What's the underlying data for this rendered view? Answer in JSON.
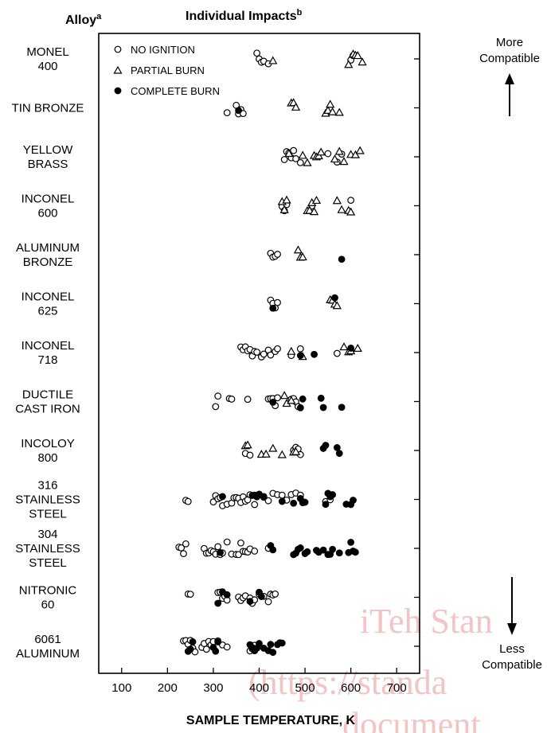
{
  "header": {
    "alloy_heading": "Alloy",
    "alloy_sup": "a",
    "impacts_heading": "Individual Impacts",
    "impacts_sup": "b"
  },
  "side": {
    "top_line1": "More",
    "top_line2": "Compatible",
    "bottom_line1": "Less",
    "bottom_line2": "Compatible"
  },
  "watermark": {
    "line1": "iTeh Stan",
    "line2": "(https://standa",
    "line3": "document",
    "color": "#f2c4c4"
  },
  "legend": [
    {
      "marker": "circle-open",
      "label": "NO IGNITION"
    },
    {
      "marker": "triangle-open",
      "label": "PARTIAL BURN"
    },
    {
      "marker": "circle-filled",
      "label": "COMPLETE BURN"
    }
  ],
  "chart_data": {
    "type": "scatter",
    "title": "Individual Impacts",
    "xlabel": "SAMPLE TEMPERATURE, K",
    "ylabel": "Alloy",
    "xlim": [
      50,
      750
    ],
    "xticks": [
      100,
      200,
      300,
      400,
      500,
      600,
      700
    ],
    "alloys": [
      {
        "label": [
          "MONEL",
          "400"
        ],
        "no_ignition": [
          395,
          400,
          405,
          410,
          420,
          600,
          605
        ],
        "partial_burn": [
          430,
          595,
          605,
          610,
          615,
          625
        ],
        "complete_burn": []
      },
      {
        "label": [
          "TIN BRONZE"
        ],
        "no_ignition": [
          330,
          350,
          355,
          360,
          365
        ],
        "partial_burn": [
          470,
          475,
          480,
          545,
          550,
          555,
          560,
          575
        ],
        "complete_burn": [
          355
        ]
      },
      {
        "label": [
          "YELLOW",
          "BRASS"
        ],
        "no_ignition": [
          455,
          460,
          465,
          470,
          475,
          480,
          490,
          550,
          570,
          580
        ],
        "partial_burn": [
          465,
          495,
          505,
          520,
          525,
          530,
          535,
          565,
          575,
          585,
          600,
          610,
          620
        ],
        "complete_burn": []
      },
      {
        "label": [
          "INCONEL",
          "600"
        ],
        "no_ignition": [
          450,
          455,
          460,
          515,
          600
        ],
        "partial_burn": [
          450,
          455,
          460,
          505,
          510,
          515,
          520,
          525,
          570,
          580,
          595,
          600
        ],
        "complete_burn": []
      },
      {
        "label": [
          "ALUMINUM",
          "BRONZE"
        ],
        "no_ignition": [
          425,
          430,
          435,
          440
        ],
        "partial_burn": [
          485,
          490,
          495
        ],
        "complete_burn": [
          580
        ]
      },
      {
        "label": [
          "INCONEL",
          "625"
        ],
        "no_ignition": [
          425,
          430,
          435,
          440
        ],
        "partial_burn": [
          555,
          560,
          565,
          570
        ],
        "complete_burn": [
          430,
          565
        ]
      },
      {
        "label": [
          "INCONEL",
          "718"
        ],
        "no_ignition": [
          360,
          365,
          370,
          375,
          380,
          385,
          390,
          395,
          405,
          410,
          420,
          425,
          435,
          440,
          470,
          490,
          570,
          600
        ],
        "partial_burn": [
          470,
          495,
          585,
          595,
          600,
          615
        ],
        "complete_burn": [
          490,
          520,
          600
        ]
      },
      {
        "label": [
          "DUCTILE",
          "CAST IRON"
        ],
        "no_ignition": [
          305,
          310,
          335,
          340,
          375,
          420,
          425,
          430,
          435,
          440,
          470,
          475,
          480,
          485
        ],
        "partial_burn": [
          455,
          460,
          470
        ],
        "complete_burn": [
          430,
          490,
          495,
          535,
          540,
          580
        ]
      },
      {
        "label": [
          "INCOLOY",
          "800"
        ],
        "no_ignition": [
          370,
          380,
          475,
          480,
          485,
          490
        ],
        "partial_burn": [
          370,
          375,
          405,
          415,
          430,
          450,
          475,
          480
        ],
        "complete_burn": [
          540,
          545,
          570,
          575
        ]
      },
      {
        "label": [
          "316",
          "STAINLESS",
          "STEEL"
        ],
        "no_ignition": [
          240,
          245,
          300,
          305,
          310,
          315,
          320,
          330,
          340,
          345,
          350,
          355,
          360,
          365,
          370,
          375,
          380,
          390,
          400,
          410,
          420,
          430,
          440,
          450,
          460,
          470,
          480,
          490,
          545,
          555
        ],
        "partial_burn": [],
        "complete_burn": [
          320,
          385,
          390,
          395,
          400,
          410,
          450,
          475,
          490,
          495,
          500,
          545,
          550,
          555,
          560,
          590,
          600,
          605
        ]
      },
      {
        "label": [
          "304",
          "STAINLESS",
          "STEEL"
        ],
        "no_ignition": [
          225,
          230,
          235,
          240,
          280,
          285,
          290,
          295,
          300,
          305,
          310,
          315,
          320,
          330,
          340,
          350,
          355,
          360,
          365,
          370,
          375,
          380,
          390,
          420
        ],
        "partial_burn": [],
        "complete_burn": [
          315,
          425,
          430,
          475,
          480,
          485,
          490,
          500,
          505,
          525,
          530,
          540,
          550,
          555,
          560,
          575,
          595,
          600,
          605,
          610
        ]
      },
      {
        "label": [
          "NITRONIC",
          "60"
        ],
        "no_ignition": [
          245,
          250,
          310,
          315,
          320,
          325,
          330,
          355,
          360,
          365,
          370,
          380,
          385,
          390,
          400,
          410,
          420,
          425,
          430,
          435
        ],
        "partial_burn": [],
        "complete_burn": [
          310,
          320,
          330,
          380,
          400,
          405
        ]
      },
      {
        "label": [
          "6061",
          "ALUMINUM"
        ],
        "no_ignition": [
          235,
          240,
          245,
          250,
          255,
          260,
          275,
          280,
          285,
          290,
          295,
          300,
          310,
          320,
          330,
          380,
          385,
          390
        ],
        "partial_burn": [],
        "complete_burn": [
          245,
          250,
          255,
          300,
          305,
          310,
          380,
          385,
          390,
          395,
          400,
          410,
          420,
          425,
          430,
          440,
          445,
          450
        ]
      }
    ]
  }
}
